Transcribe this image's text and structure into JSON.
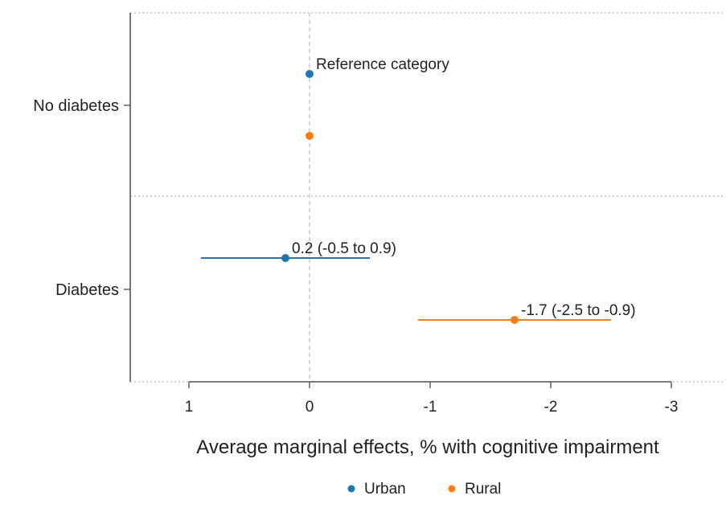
{
  "chart_data": {
    "type": "scatter",
    "subtype": "forest-plot",
    "xlabel": "Average marginal effects, % with cognitive impairment",
    "ylabel": "",
    "xlim": [
      1.35,
      -3.0
    ],
    "x_reversed": true,
    "x_ticks": [
      1,
      0,
      -1,
      -2,
      -3
    ],
    "x_tick_labels": [
      "1",
      "0",
      "-1",
      "-2",
      "-3"
    ],
    "reference_line_x": 0,
    "categories": [
      "No diabetes",
      "Diabetes"
    ],
    "grid": "horizontal dotted separators",
    "legend_position": "bottom-center",
    "series": [
      {
        "name": "Urban",
        "color": "#1f77b4",
        "points": [
          {
            "category": "No diabetes",
            "x": 0,
            "ci": null,
            "label": "Reference category"
          },
          {
            "category": "Diabetes",
            "x": 0.2,
            "ci": [
              -0.5,
              0.9
            ],
            "label": "0.2 (-0.5 to 0.9)"
          }
        ]
      },
      {
        "name": "Rural",
        "color": "#ff7f0e",
        "points": [
          {
            "category": "No diabetes",
            "x": 0,
            "ci": null,
            "label": ""
          },
          {
            "category": "Diabetes",
            "x": -1.7,
            "ci": [
              -2.5,
              -0.9
            ],
            "label": "-1.7 (-2.5 to -0.9)"
          }
        ]
      }
    ]
  }
}
